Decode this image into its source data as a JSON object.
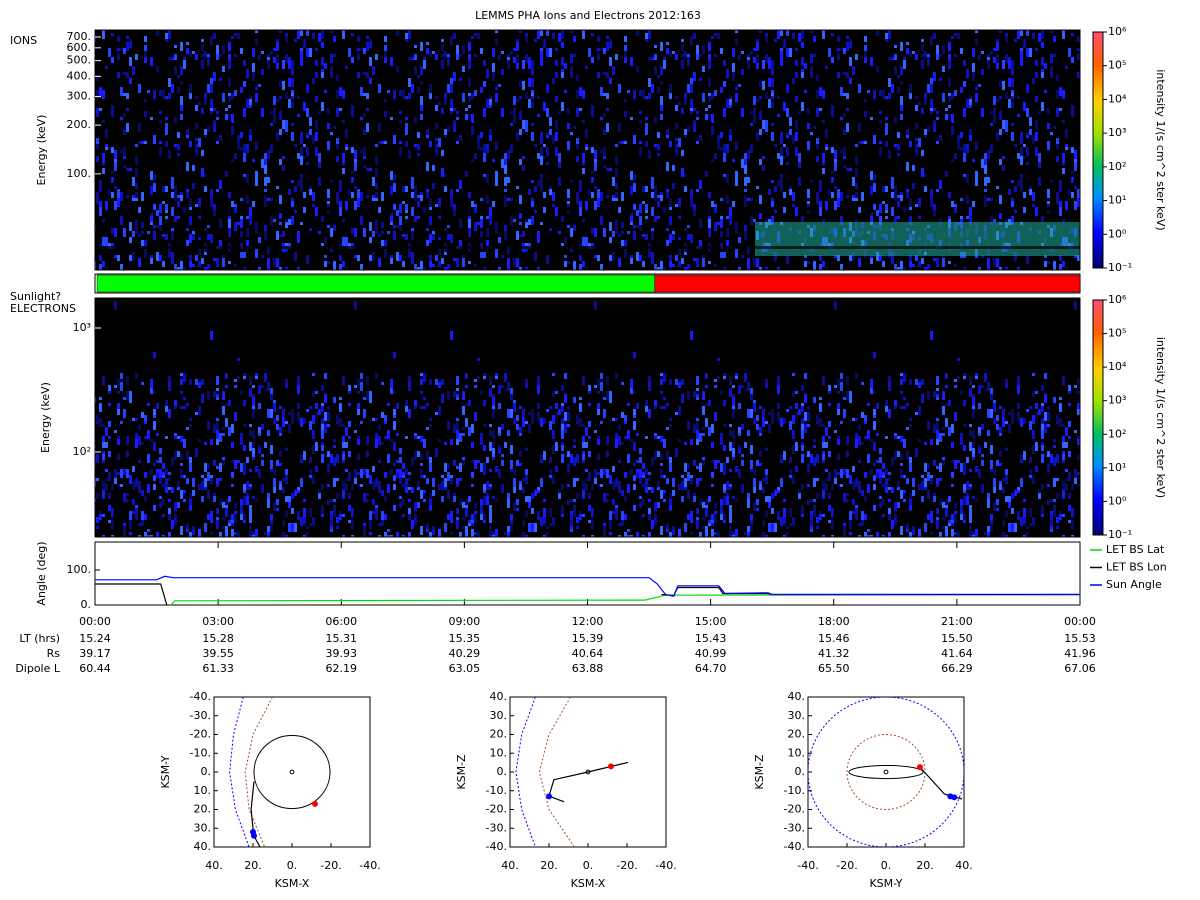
{
  "title": "LEMMS PHA Ions and Electrons  2012:163",
  "chart_data": [
    {
      "type": "spectrogram",
      "label": "IONS",
      "ylabel": "Energy (keV)",
      "log_y": true,
      "ylim": [
        25.5,
        773
      ],
      "yticks": [
        {
          "value": 700,
          "label": "700."
        },
        {
          "value": 600,
          "label": "600."
        },
        {
          "value": 500,
          "label": "500."
        },
        {
          "value": 400,
          "label": "400."
        },
        {
          "value": 300,
          "label": "300."
        },
        {
          "value": 200,
          "label": "200."
        },
        {
          "value": 100,
          "label": "100."
        }
      ],
      "colorbar": {
        "label": "intensity 1/(s cm^2 ster keV)",
        "zlim": [
          0.1,
          1000000
        ],
        "zticks": [
          {
            "value": 0.1,
            "label": "10⁻¹"
          },
          {
            "value": 1,
            "label": "10⁰"
          },
          {
            "value": 10,
            "label": "10¹"
          },
          {
            "value": 100,
            "label": "10²"
          },
          {
            "value": 1000,
            "label": "10³"
          },
          {
            "value": 10000,
            "label": "10⁴"
          },
          {
            "value": 100000,
            "label": "10⁵"
          },
          {
            "value": 1000000,
            "label": "10⁶"
          }
        ]
      }
    },
    {
      "type": "timeline",
      "label": "Sunlight?",
      "xlim": [
        0,
        24
      ],
      "edges": [
        0.05,
        13.64,
        24
      ],
      "colors": [
        "#00ff00",
        "#ff0000"
      ]
    },
    {
      "type": "spectrogram",
      "label": "ELECTRONS",
      "ylabel": "Energy (keV)",
      "log_y": true,
      "ylim": [
        20.6,
        1746
      ],
      "yticks": [
        {
          "value": 1000,
          "label": "10³"
        },
        {
          "value": 100,
          "label": "10²"
        }
      ],
      "colorbar": {
        "label": "intensity 1/(s cm^2 ster keV)",
        "zlim": [
          0.1,
          1000000
        ],
        "zticks": [
          {
            "value": 0.1,
            "label": "10⁻¹"
          },
          {
            "value": 1,
            "label": "10⁰"
          },
          {
            "value": 10,
            "label": "10¹"
          },
          {
            "value": 100,
            "label": "10²"
          },
          {
            "value": 1000,
            "label": "10³"
          },
          {
            "value": 10000,
            "label": "10⁴"
          },
          {
            "value": 100000,
            "label": "10⁵"
          },
          {
            "value": 1000000,
            "label": "10⁶"
          }
        ]
      }
    },
    {
      "type": "line",
      "ylabel": "Angle (deg)",
      "xlim": [
        0,
        24
      ],
      "ylim": [
        0,
        180
      ],
      "legend": "right",
      "yticks": [
        {
          "value": 0,
          "label": "0."
        },
        {
          "value": 100,
          "label": "100."
        }
      ],
      "xticks": [
        {
          "value": 0,
          "label": "00:00"
        },
        {
          "value": 3,
          "label": "03:00"
        },
        {
          "value": 6,
          "label": "06:00"
        },
        {
          "value": 9,
          "label": "09:00"
        },
        {
          "value": 12,
          "label": "12:00"
        },
        {
          "value": 15,
          "label": "15:00"
        },
        {
          "value": 18,
          "label": "18:00"
        },
        {
          "value": 21,
          "label": "21:00"
        },
        {
          "value": 24,
          "label": "00:00"
        }
      ],
      "series": [
        {
          "name": "LET BS Lat",
          "color": "#00dd00",
          "x": [
            1.85,
            1.95,
            13.4,
            13.9,
            24
          ],
          "values": [
            0,
            12,
            14,
            28,
            30
          ]
        },
        {
          "name": "LET BS Lon",
          "color": "#000000",
          "x": [
            0,
            1.6,
            1.75,
            13.5,
            13.8,
            14.1,
            14.2,
            15.2,
            15.3,
            16.4,
            16.5,
            24
          ],
          "values": [
            60,
            60,
            0,
            null,
            30,
            27,
            50,
            50,
            33,
            33,
            30,
            30
          ]
        },
        {
          "name": "Sun Angle",
          "color": "#0000ff",
          "x": [
            0,
            1.5,
            1.7,
            1.9,
            13.5,
            13.7,
            13.9,
            14.1,
            14.2,
            15.2,
            15.35,
            16.4,
            16.5,
            24
          ],
          "values": [
            72,
            72,
            82,
            78,
            78,
            60,
            30,
            25,
            55,
            55,
            33,
            35,
            30,
            30
          ]
        }
      ],
      "ephemeris": [
        {
          "label": "LT (hrs)",
          "values": [
            "15.24",
            "15.28",
            "15.31",
            "15.35",
            "15.39",
            "15.43",
            "15.46",
            "15.50",
            "15.53"
          ]
        },
        {
          "label": "Rs",
          "values": [
            "39.17",
            "39.55",
            "39.93",
            "40.29",
            "40.64",
            "40.99",
            "41.32",
            "41.64",
            "41.96"
          ]
        },
        {
          "label": "Dipole L",
          "values": [
            "60.44",
            "61.33",
            "62.19",
            "63.05",
            "63.88",
            "64.70",
            "65.50",
            "66.29",
            "67.06"
          ]
        }
      ]
    },
    {
      "type": "orbit",
      "xlabel": "KSM-X",
      "ylabel": "KSM-Y",
      "xlim": [
        40,
        -40
      ],
      "ylim": [
        40,
        -40
      ],
      "xticks": [
        {
          "value": 40,
          "label": "40."
        },
        {
          "value": 20,
          "label": "20."
        },
        {
          "value": 0,
          "label": "0."
        },
        {
          "value": -20,
          "label": "-20."
        },
        {
          "value": -40,
          "label": "-40."
        }
      ],
      "yticks": [
        {
          "value": -40,
          "label": "-40."
        },
        {
          "value": -30,
          "label": "-30."
        },
        {
          "value": -20,
          "label": "-20."
        },
        {
          "value": -10,
          "label": "-10."
        },
        {
          "value": 0,
          "label": "0."
        },
        {
          "value": 10,
          "label": "10."
        },
        {
          "value": 20,
          "label": "20."
        },
        {
          "value": 30,
          "label": "30."
        },
        {
          "value": 40,
          "label": "40."
        }
      ],
      "series": [
        {
          "color": "#0000ff",
          "dash": true,
          "x": [
            25,
            30,
            32,
            29,
            22
          ],
          "y": [
            -40,
            -20,
            0,
            20,
            40
          ]
        },
        {
          "color": "#a0522d",
          "dash": true,
          "x": [
            10,
            20,
            24,
            22,
            14
          ],
          "y": [
            -40,
            -20,
            0,
            20,
            40
          ]
        },
        {
          "color": "#000000",
          "dash": false,
          "x": [
            19.5,
            21,
            20,
            19,
            16.4
          ],
          "y": [
            5,
            20,
            30,
            35,
            40
          ]
        }
      ],
      "circles": [
        {
          "cx": 0,
          "cy": 0,
          "rx": 19.5,
          "ry": 19.5,
          "color": "#000000"
        },
        {
          "cx": 0,
          "cy": 0,
          "rx": 1,
          "ry": 1,
          "color": "#000000"
        }
      ],
      "points": [
        {
          "x": -11.8,
          "y": 17,
          "color": "#ff0000"
        },
        {
          "x": 20,
          "y": 32,
          "color": "#0000ff"
        },
        {
          "x": 19.5,
          "y": 34,
          "color": "#0000ff"
        }
      ]
    },
    {
      "type": "orbit",
      "xlabel": "KSM-X",
      "ylabel": "KSM-Z",
      "xlim": [
        40,
        -40
      ],
      "ylim": [
        -40,
        40
      ],
      "xticks": [
        {
          "value": 40,
          "label": "40."
        },
        {
          "value": 20,
          "label": "20."
        },
        {
          "value": 0,
          "label": "0."
        },
        {
          "value": -20,
          "label": "-20."
        },
        {
          "value": -40,
          "label": "-40."
        }
      ],
      "yticks": [
        {
          "value": -40,
          "label": "-40."
        },
        {
          "value": -30,
          "label": "-30."
        },
        {
          "value": -20,
          "label": "-20."
        },
        {
          "value": -10,
          "label": "-10."
        },
        {
          "value": 0,
          "label": "0."
        },
        {
          "value": 10,
          "label": "10."
        },
        {
          "value": 20,
          "label": "20."
        },
        {
          "value": 30,
          "label": "30."
        },
        {
          "value": 40,
          "label": "40."
        }
      ],
      "series": [
        {
          "color": "#0000ff",
          "dash": true,
          "x": [
            27,
            34,
            37,
            34,
            27
          ],
          "y": [
            40,
            20,
            0,
            -20,
            -40
          ]
        },
        {
          "color": "#a0522d",
          "dash": true,
          "x": [
            9,
            20,
            25,
            20,
            7
          ],
          "y": [
            40,
            20,
            0,
            -20,
            -40
          ]
        },
        {
          "color": "#000000",
          "dash": false,
          "x": [
            12.3,
            20,
            17.5,
            0,
            -20.5
          ],
          "y": [
            -15.9,
            -12.8,
            -4.1,
            0,
            5.1
          ]
        }
      ],
      "circles": [
        {
          "cx": 0,
          "cy": 0,
          "rx": 1,
          "ry": 1,
          "color": "#000000"
        }
      ],
      "points": [
        {
          "x": -11.8,
          "y": 3,
          "color": "#ff0000"
        },
        {
          "x": 20,
          "y": -13,
          "color": "#0000ff"
        }
      ]
    },
    {
      "type": "orbit",
      "xlabel": "KSM-Y",
      "ylabel": "KSM-Z",
      "xlim": [
        -40,
        40
      ],
      "ylim": [
        -40,
        40
      ],
      "xticks": [
        {
          "value": -40,
          "label": "-40."
        },
        {
          "value": -20,
          "label": "-20."
        },
        {
          "value": 0,
          "label": "0."
        },
        {
          "value": 20,
          "label": "20."
        },
        {
          "value": 40,
          "label": "40."
        }
      ],
      "yticks": [
        {
          "value": -40,
          "label": "-40."
        },
        {
          "value": -30,
          "label": "-30."
        },
        {
          "value": -20,
          "label": "-20."
        },
        {
          "value": -10,
          "label": "-10."
        },
        {
          "value": 0,
          "label": "0."
        },
        {
          "value": 10,
          "label": "10."
        },
        {
          "value": 20,
          "label": "20."
        },
        {
          "value": 30,
          "label": "30."
        },
        {
          "value": 40,
          "label": "40."
        }
      ],
      "series": [
        {
          "color": "#000000",
          "dash": false,
          "x": [
            17.4,
            30,
            39
          ],
          "y": [
            2.6,
            -11.8,
            -14.4
          ]
        }
      ],
      "circles": [
        {
          "cx": 0,
          "cy": 0,
          "rx": 40,
          "ry": 40,
          "color": "#0000ff",
          "dash": true
        },
        {
          "cx": 0,
          "cy": 0,
          "rx": 20,
          "ry": 20,
          "color": "#a0522d",
          "dash": true
        },
        {
          "cx": 0,
          "cy": 0,
          "rx": 19,
          "ry": 3.5,
          "color": "#000000"
        },
        {
          "cx": 0,
          "cy": 0,
          "rx": 1,
          "ry": 1,
          "color": "#000000"
        }
      ],
      "points": [
        {
          "x": 17.4,
          "y": 2.6,
          "color": "#ff0000"
        },
        {
          "x": 33,
          "y": -13,
          "color": "#0000ff"
        },
        {
          "x": 35,
          "y": -13.5,
          "color": "#0000ff"
        }
      ]
    }
  ]
}
